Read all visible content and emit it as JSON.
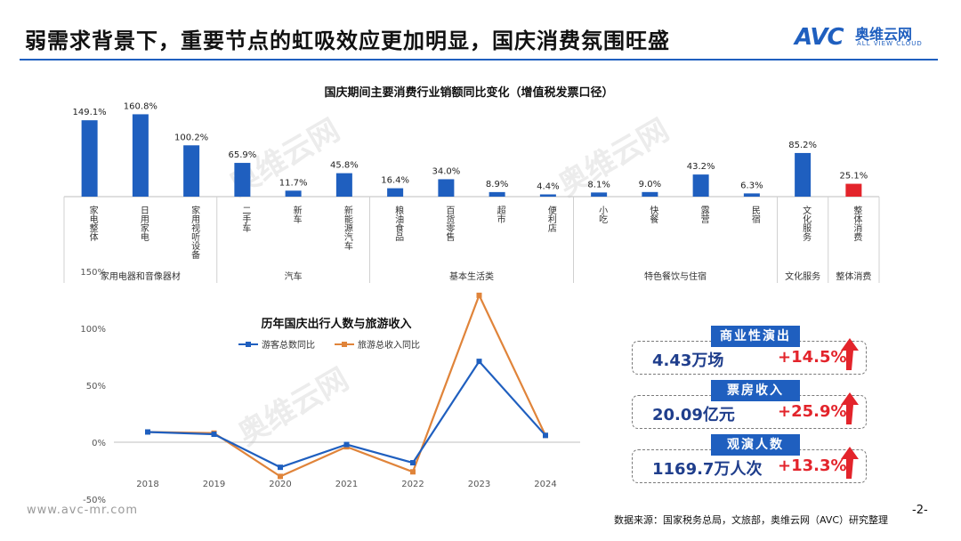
{
  "page": {
    "title": "弱需求背景下，重要节点的虹吸效应更加明显，国庆消费氛围旺盛",
    "logo_mark": "AVC",
    "logo_cn": "奥维云网",
    "logo_en": "ALL VIEW CLOUD",
    "footer_url": "www.avc-mr.com",
    "footer_source": "数据来源：国家税务总局，文旅部，奥维云网（AVC）研究整理",
    "page_number": "-2-",
    "watermark_cn": "奥维云网",
    "watermark_en": "ALL VIEW CLOUD",
    "accent_color": "#1f5fbf",
    "highlight_color": "#e3242b"
  },
  "chart_data": [
    {
      "type": "bar",
      "title": "国庆期间主要消费行业销额同比变化（增值税发票口径）",
      "categories": [
        "家电整体",
        "日用家电",
        "家用视听设备",
        "二手车",
        "新车",
        "新能源汽车",
        "粮油食品",
        "百货零售",
        "超市",
        "便利店",
        "小吃",
        "快餐",
        "露营",
        "民宿",
        "文化服务",
        "整体消费"
      ],
      "values": [
        149.1,
        160.8,
        100.2,
        65.9,
        11.7,
        45.8,
        16.4,
        34.0,
        8.9,
        4.4,
        8.1,
        9.0,
        43.2,
        6.3,
        85.2,
        25.1
      ],
      "value_labels": [
        "149.1%",
        "160.8%",
        "100.2%",
        "65.9%",
        "11.7%",
        "45.8%",
        "16.4%",
        "34.0%",
        "8.9%",
        "4.4%",
        "8.1%",
        "9.0%",
        "43.2%",
        "6.3%",
        "85.2%",
        "25.1%"
      ],
      "groups": [
        {
          "name": "家用电器和音像器材",
          "count": 3
        },
        {
          "name": "汽车",
          "count": 3
        },
        {
          "name": "基本生活类",
          "count": 4
        },
        {
          "name": "特色餐饮与住宿",
          "count": 4
        },
        {
          "name": "文化服务",
          "count": 1
        },
        {
          "name": "整体消费",
          "count": 1
        }
      ],
      "colors": {
        "default": "#1f5fbf",
        "highlight": "#e3242b"
      },
      "highlight_index": 15
    },
    {
      "type": "line",
      "title": "历年国庆出行人数与旅游收入",
      "x": [
        "2018",
        "2019",
        "2020",
        "2021",
        "2022",
        "2023",
        "2024"
      ],
      "series": [
        {
          "name": "游客总数同比",
          "color": "#1f5fbf",
          "values": [
            9,
            7,
            -22,
            -2,
            -18,
            71,
            6
          ]
        },
        {
          "name": "旅游总收入同比",
          "color": "#e0843a",
          "values": [
            9,
            8,
            -30,
            -4,
            -26,
            129,
            6
          ]
        }
      ],
      "yticks": [
        "150%",
        "100%",
        "50%",
        "0%",
        "-50%"
      ],
      "ylim": [
        -50,
        150
      ],
      "legend": "top",
      "grid": false
    }
  ],
  "stats": [
    {
      "label": "商业性演出",
      "value": "4.43万场",
      "change": "+14.5%"
    },
    {
      "label": "票房收入",
      "value": "20.09亿元",
      "change": "+25.9%"
    },
    {
      "label": "观演人数",
      "value": "1169.7万人次",
      "change": "+13.3%"
    }
  ]
}
